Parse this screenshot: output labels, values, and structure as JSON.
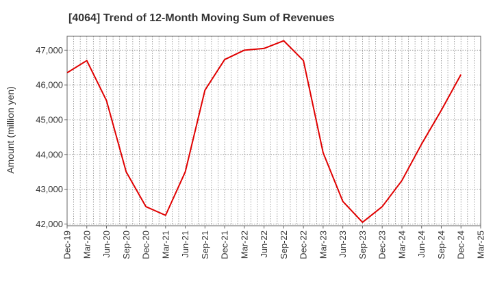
{
  "chart_data": {
    "type": "line",
    "title": "[4064]  Trend of 12-Month Moving Sum of Revenues",
    "ylabel": "Amount (million yen)",
    "xlabel": "",
    "ylim": [
      41950,
      47400
    ],
    "yticks": [
      42000,
      43000,
      44000,
      45000,
      46000,
      47000
    ],
    "ytick_labels": [
      "42,000",
      "43,000",
      "44,000",
      "45,000",
      "46,000",
      "47,000"
    ],
    "categories": [
      "Dec-19",
      "Mar-20",
      "Jun-20",
      "Sep-20",
      "Dec-20",
      "Mar-21",
      "Jun-21",
      "Sep-21",
      "Dec-21",
      "Mar-22",
      "Jun-22",
      "Sep-22",
      "Dec-22",
      "Mar-23",
      "Jun-23",
      "Sep-23",
      "Dec-23",
      "Mar-24",
      "Jun-24",
      "Sep-24",
      "Dec-24",
      "Mar-25"
    ],
    "grid": true,
    "series": [
      {
        "name": "",
        "color": "#e00000",
        "values": [
          46350,
          46700,
          45550,
          43500,
          42500,
          42250,
          43500,
          45850,
          46730,
          47000,
          47050,
          47270,
          46700,
          44050,
          42650,
          42050,
          42500,
          43250,
          44300,
          45270,
          46300,
          null
        ]
      }
    ]
  }
}
